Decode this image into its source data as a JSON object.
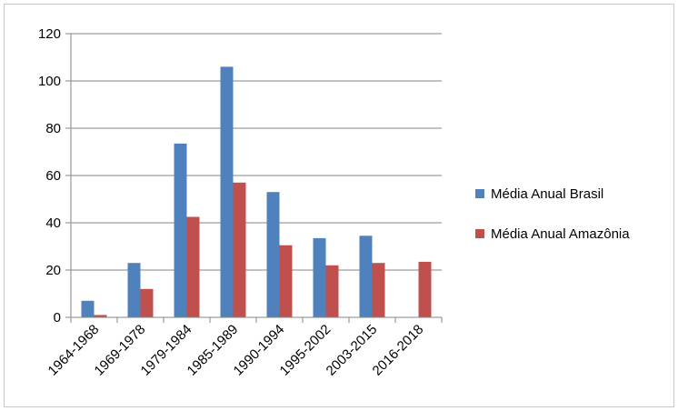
{
  "chart_data": {
    "type": "bar",
    "title": "",
    "xlabel": "",
    "ylabel": "",
    "ylim": [
      0,
      120
    ],
    "yticks": [
      "0",
      "20",
      "40",
      "60",
      "80",
      "100",
      "120"
    ],
    "grid": true,
    "legend_position": "right",
    "categories": [
      "1964-1968",
      "1969-1978",
      "1979-1984",
      "1985-1989",
      "1990-1994",
      "1995-2002",
      "2003-2015",
      "2016-2018"
    ],
    "series": [
      {
        "name": "Média Anual Brasil",
        "color": "#4f81bd",
        "values": [
          7,
          23,
          73.5,
          106,
          53,
          33.5,
          34.5,
          null
        ]
      },
      {
        "name": "Média Anual Amazônia",
        "color": "#c0504d",
        "values": [
          1,
          12,
          42.5,
          57,
          30.5,
          22,
          23,
          23.5
        ]
      }
    ]
  }
}
